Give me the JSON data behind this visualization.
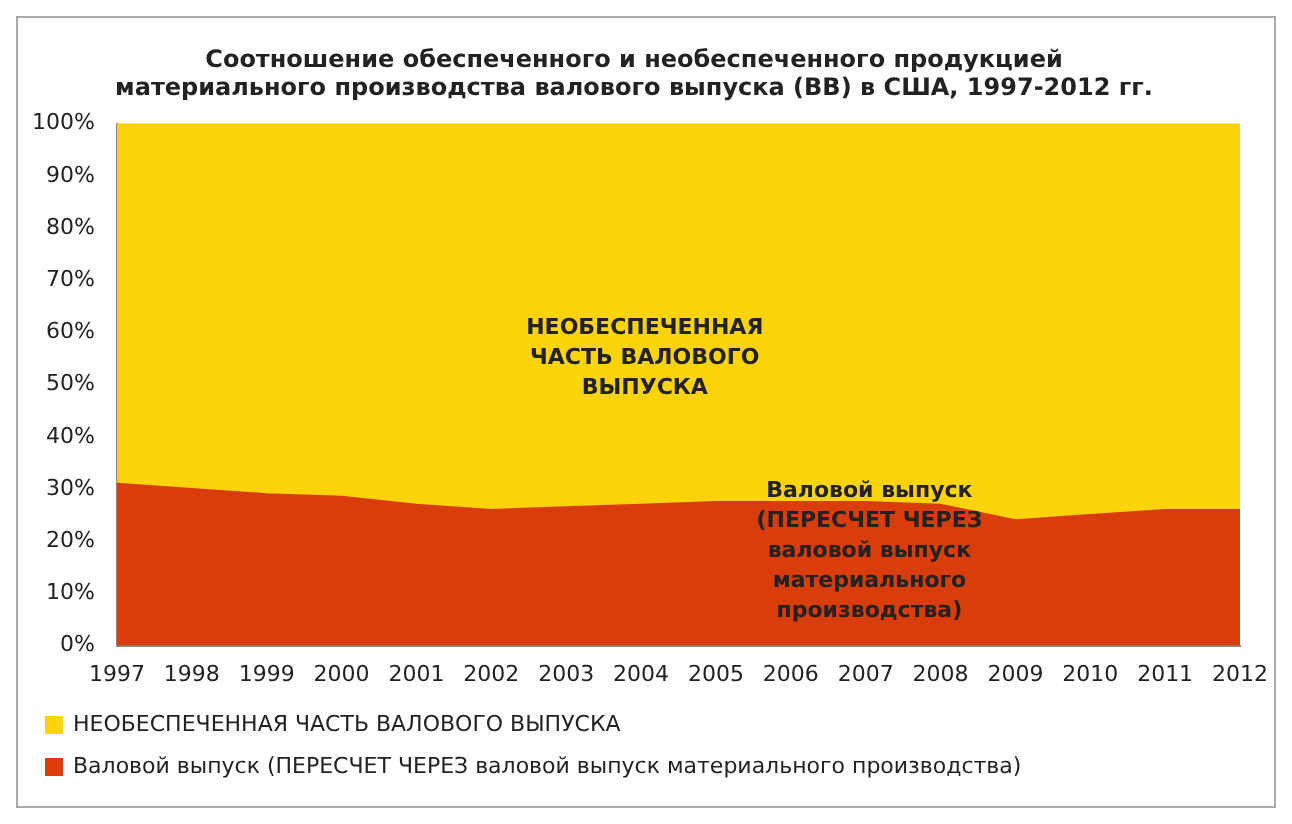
{
  "chart_data": {
    "type": "area",
    "stacked": true,
    "title": [
      "Соотношение обеспеченного и необеспеченного продукцией",
      "материального производства валового выпуска (ВВ) в США, 1997-2012 гг."
    ],
    "categories": [
      "1997",
      "1998",
      "1999",
      "2000",
      "2001",
      "2002",
      "2003",
      "2004",
      "2005",
      "2006",
      "2007",
      "2008",
      "2009",
      "2010",
      "2011",
      "2012"
    ],
    "series": [
      {
        "name": "Валовой выпуск (ПЕРЕСЧЕТ ЧЕРЕЗ валовой выпуск материального производства)",
        "color": "#d93d0b",
        "values": [
          31,
          30,
          29,
          28.5,
          27,
          26,
          26.5,
          27,
          27.5,
          27.5,
          27.5,
          27,
          24,
          25,
          26,
          26
        ]
      },
      {
        "name": "НЕОБЕСПЕЧЕННАЯ ЧАСТЬ ВАЛОВОГО ВЫПУСКА",
        "color": "#fdd30b",
        "values": [
          69,
          70,
          71,
          71.5,
          73,
          74,
          73.5,
          73,
          72.5,
          72.5,
          72.5,
          73,
          76,
          75,
          74,
          74
        ]
      }
    ],
    "ylim": [
      0,
      100
    ],
    "yticks": [
      {
        "value": 0,
        "label": "0%"
      },
      {
        "value": 10,
        "label": "10%"
      },
      {
        "value": 20,
        "label": "20%"
      },
      {
        "value": 30,
        "label": "30%"
      },
      {
        "value": 40,
        "label": "40%"
      },
      {
        "value": 50,
        "label": "50%"
      },
      {
        "value": 60,
        "label": "60%"
      },
      {
        "value": 70,
        "label": "70%"
      },
      {
        "value": 80,
        "label": "80%"
      },
      {
        "value": 90,
        "label": "90%"
      },
      {
        "value": 100,
        "label": "100%"
      }
    ],
    "grid": false,
    "legend": "bottom",
    "annotations": [
      "НЕОБЕСПЕЧЕННАЯ ЧАСТЬ ВАЛОВОГО ВЫПУСКА",
      "Валовой выпуск (ПЕРЕСЧЕТ ЧЕРЕЗ валовой выпуск материального производства)"
    ]
  }
}
